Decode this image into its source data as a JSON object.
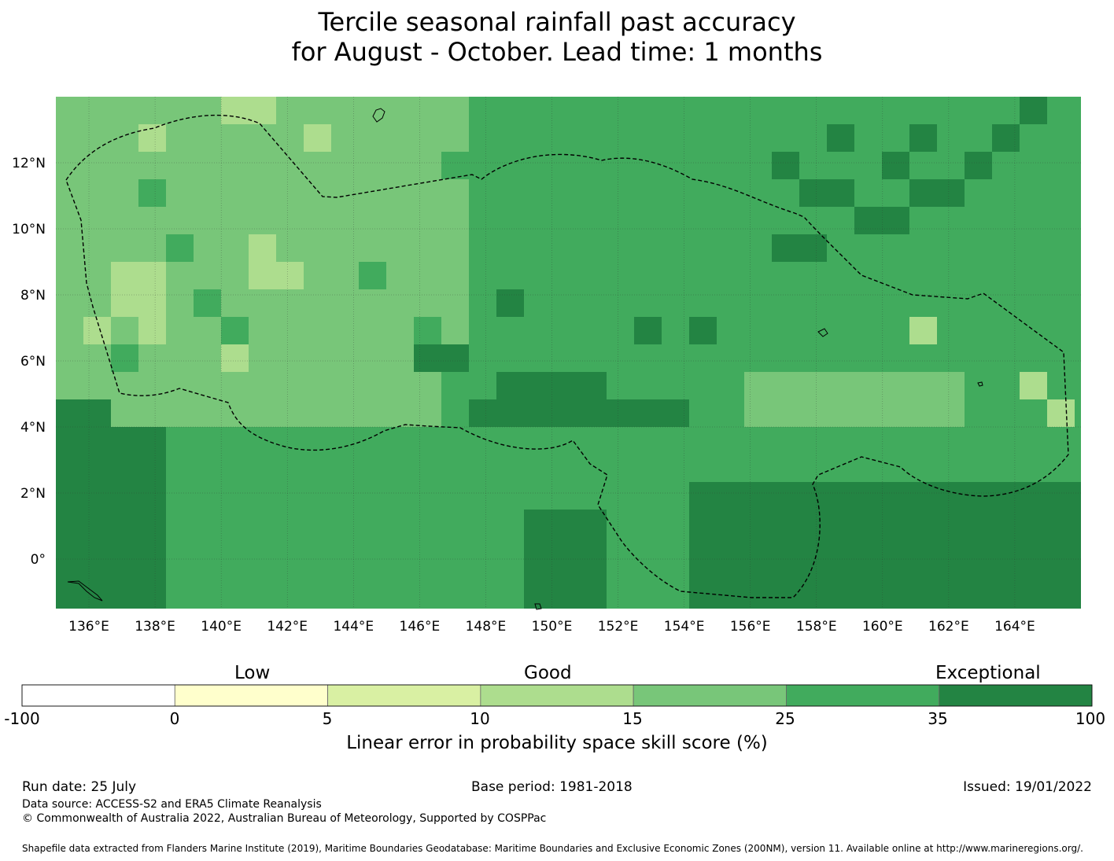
{
  "title": {
    "line1": "Tercile seasonal rainfall past accuracy",
    "line2": "for August - October. Lead time: 1 months"
  },
  "map": {
    "lon_range": [
      135,
      166
    ],
    "lat_range": [
      -1.5,
      14
    ],
    "lon_ticks": [
      "136°E",
      "138°E",
      "140°E",
      "142°E",
      "144°E",
      "146°E",
      "148°E",
      "150°E",
      "152°E",
      "154°E",
      "156°E",
      "158°E",
      "160°E",
      "162°E",
      "164°E"
    ],
    "lat_ticks": [
      "12°N",
      "10°N",
      "8°N",
      "6°N",
      "4°N",
      "2°N",
      "0°"
    ],
    "grid_lines": true,
    "cell_colors": [
      "#ffffff",
      "#ffffcc",
      "#d9f0a3",
      "#addd8e",
      "#78c679",
      "#41ab5d",
      "#238443"
    ],
    "boundary": "dashed EEZ outline"
  },
  "colorbar": {
    "categories": [
      "Low",
      "Good",
      "Exceptional"
    ],
    "labels": [
      "-100",
      "0",
      "5",
      "10",
      "15",
      "25",
      "35",
      "100"
    ],
    "colors": [
      "#ffffff",
      "#ffffcc",
      "#d9f0a3",
      "#addd8e",
      "#78c679",
      "#41ab5d",
      "#238443"
    ],
    "title": "Linear error in probability space skill score (%)"
  },
  "footer": {
    "run_date": "Run date: 25 July",
    "base_period": "Base period: 1981-2018",
    "issued": "Issued: 19/01/2022",
    "data_source": "Data source: ACCESS-S2 and ERA5 Climate Reanalysis",
    "copyright": "© Commonwealth of Australia 2022, Australian Bureau of Meteorology, Supported by COSPPac",
    "shapefile": "Shapefile data extracted from Flanders Marine Institute (2019), Maritime Boundaries Geodatabase: Maritime Boundaries and Exclusive Economic Zones (200NM), version 11. Available online at http://www.marineregions.org/."
  }
}
